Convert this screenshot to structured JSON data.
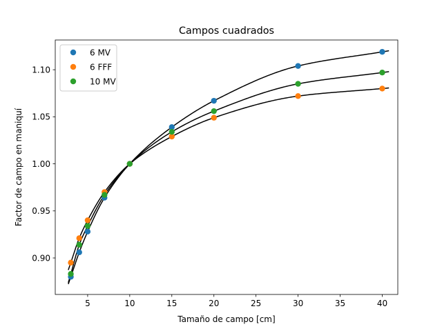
{
  "chart_data": {
    "type": "scatter",
    "title": "Campos cuadrados",
    "xlabel": "Tamaño de campo [cm]",
    "ylabel": "Factor de campo en maniquí",
    "xlim": [
      1.15,
      41.85
    ],
    "ylim": [
      0.8612,
      1.1316
    ],
    "xticks": [
      5,
      10,
      15,
      20,
      25,
      30,
      35,
      40
    ],
    "yticks": [
      0.9,
      0.95,
      1.0,
      1.05,
      1.1
    ],
    "xtick_labels": [
      "5",
      "10",
      "15",
      "20",
      "25",
      "30",
      "35",
      "40"
    ],
    "ytick_labels": [
      "0.90",
      "0.95",
      "1.00",
      "1.05",
      "1.10"
    ],
    "grid": false,
    "legend_position": "top-left",
    "fit_x_range": [
      2.7,
      40.8
    ],
    "fit_color": "#000000",
    "series": [
      {
        "name": "6 MV",
        "color": "#1f77b4",
        "x": [
          3,
          4,
          5,
          7,
          10,
          15,
          20,
          30,
          40
        ],
        "y": [
          0.88,
          0.906,
          0.928,
          0.964,
          1.0,
          1.039,
          1.067,
          1.104,
          1.119
        ]
      },
      {
        "name": "6 FFF",
        "color": "#ff7f0e",
        "x": [
          3,
          4,
          5,
          7,
          10,
          15,
          20,
          30,
          40
        ],
        "y": [
          0.895,
          0.921,
          0.94,
          0.97,
          1.0,
          1.029,
          1.049,
          1.072,
          1.08
        ]
      },
      {
        "name": "10 MV",
        "color": "#2ca02c",
        "x": [
          3,
          4,
          5,
          7,
          10,
          15,
          20,
          30,
          40
        ],
        "y": [
          0.883,
          0.914,
          0.934,
          0.967,
          1.0,
          1.034,
          1.056,
          1.085,
          1.097
        ]
      }
    ]
  }
}
